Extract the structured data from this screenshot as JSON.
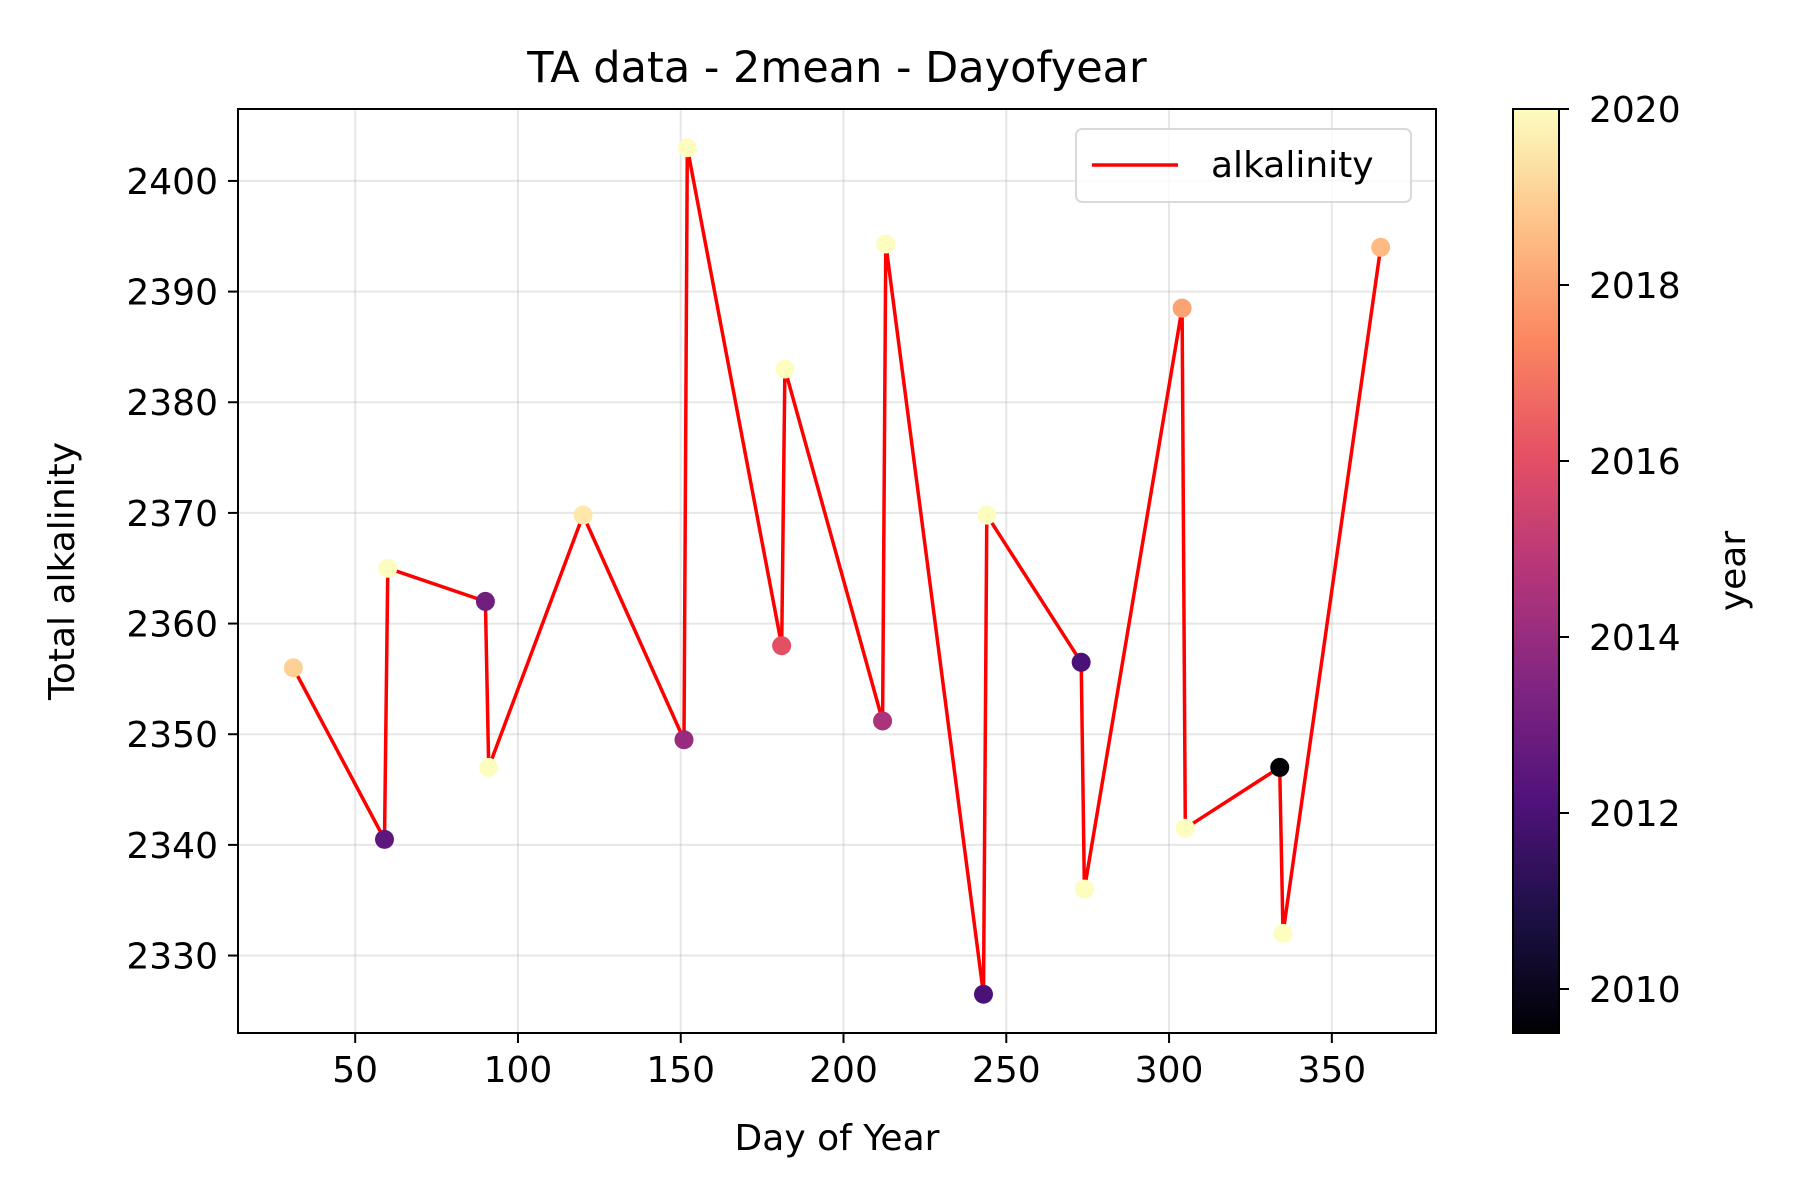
{
  "chart_data": {
    "type": "scatter",
    "title": "TA data - 2mean - Dayofyear",
    "xlabel": "Day of Year",
    "ylabel": "Total alkalinity",
    "xlim": [
      14,
      382
    ],
    "ylim": [
      2323,
      2406.5
    ],
    "xticks": [
      50,
      100,
      150,
      200,
      250,
      300,
      350
    ],
    "yticks": [
      2330,
      2340,
      2350,
      2360,
      2370,
      2380,
      2390,
      2400
    ],
    "grid": true,
    "legend": {
      "placement": "top-right",
      "entries": [
        "alkalinity"
      ]
    },
    "line_color": "#ff0000",
    "colorbar": {
      "label": "year",
      "colormap": "magma",
      "range": [
        2009.5,
        2020
      ],
      "ticks": [
        2010,
        2012,
        2014,
        2016,
        2018,
        2020
      ]
    },
    "series": [
      {
        "name": "alkalinity",
        "points": [
          {
            "x": 31,
            "y": 2356,
            "year": 2019
          },
          {
            "x": 59,
            "y": 2340.5,
            "year": 2012.5
          },
          {
            "x": 60,
            "y": 2365,
            "year": 2020
          },
          {
            "x": 90,
            "y": 2362,
            "year": 2013
          },
          {
            "x": 91,
            "y": 2347,
            "year": 2020
          },
          {
            "x": 120,
            "y": 2369.8,
            "year": 2019.5
          },
          {
            "x": 151,
            "y": 2349.5,
            "year": 2014
          },
          {
            "x": 152,
            "y": 2403,
            "year": 2020
          },
          {
            "x": 181,
            "y": 2358,
            "year": 2016
          },
          {
            "x": 182,
            "y": 2383,
            "year": 2020
          },
          {
            "x": 212,
            "y": 2351.2,
            "year": 2014.5
          },
          {
            "x": 213,
            "y": 2394.3,
            "year": 2020
          },
          {
            "x": 243,
            "y": 2326.5,
            "year": 2012
          },
          {
            "x": 244,
            "y": 2369.8,
            "year": 2020
          },
          {
            "x": 273,
            "y": 2356.5,
            "year": 2012
          },
          {
            "x": 274,
            "y": 2336,
            "year": 2020
          },
          {
            "x": 304,
            "y": 2388.5,
            "year": 2018
          },
          {
            "x": 305,
            "y": 2341.5,
            "year": 2020
          },
          {
            "x": 334,
            "y": 2347,
            "year": 2009.5
          },
          {
            "x": 335,
            "y": 2332,
            "year": 2020
          },
          {
            "x": 365,
            "y": 2394,
            "year": 2018.5
          }
        ]
      }
    ]
  }
}
